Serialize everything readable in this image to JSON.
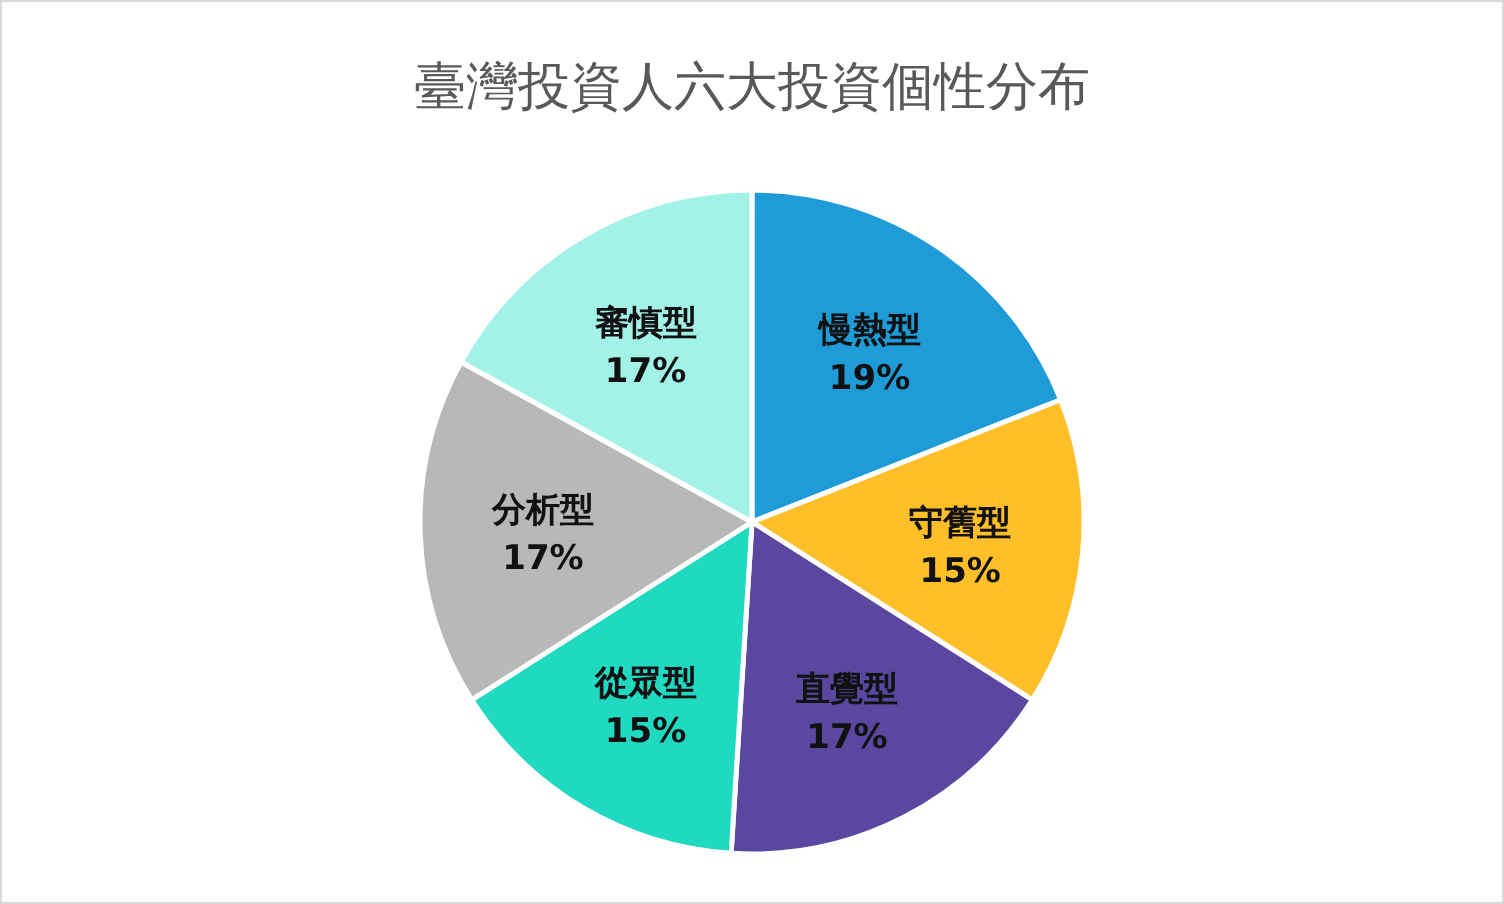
{
  "chart_data": {
    "type": "pie",
    "title": "臺灣投資人六大投資個性分布",
    "categories": [
      "慢熱型",
      "守舊型",
      "直覺型",
      "從眾型",
      "分析型",
      "審慎型"
    ],
    "values": [
      19,
      15,
      17,
      15,
      17,
      17
    ],
    "colors": [
      "#1f9bd7",
      "#ffbf28",
      "#5a47a0",
      "#1fd9c0",
      "#b8b8b8",
      "#a3f2e8"
    ],
    "value_labels": [
      "19%",
      "15%",
      "17%",
      "15%",
      "17%",
      "17%"
    ]
  }
}
